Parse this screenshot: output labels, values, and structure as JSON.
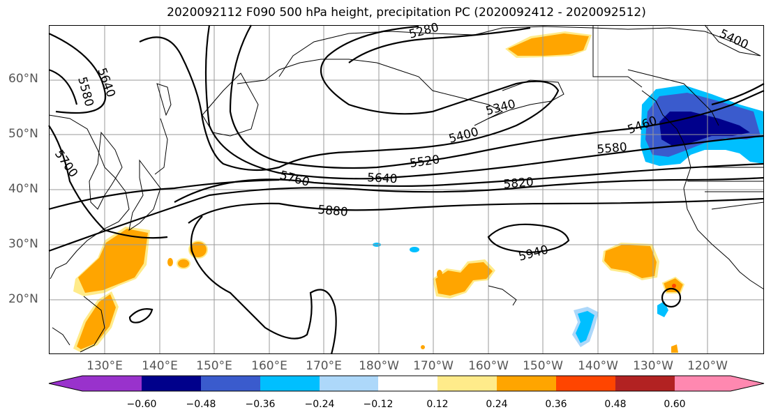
{
  "title": "2020092112 F090 500 hPa height, precipitation PC (2020092412 - 2020092512)",
  "latitude_labels": [
    "60°N",
    "50°N",
    "40°N",
    "30°N",
    "20°N"
  ],
  "longitude_labels": [
    "130°E",
    "140°E",
    "150°E",
    "160°E",
    "170°E",
    "180°W",
    "170°W",
    "160°W",
    "150°W",
    "140°W",
    "130°W",
    "120°W"
  ],
  "contour_labels": [
    "5280",
    "5400",
    "5640",
    "5580",
    "5340",
    "5400",
    "5460",
    "5580",
    "5520",
    "5640",
    "5700",
    "5760",
    "5820",
    "5880",
    "5940"
  ],
  "colorbar": {
    "ticks": [
      "−0.60",
      "−0.48",
      "−0.36",
      "−0.24",
      "−0.12",
      "0.12",
      "0.24",
      "0.36",
      "0.48",
      "0.60"
    ],
    "colors": [
      "#9932cc",
      "#00008b",
      "#3a5bcd",
      "#00bfff",
      "#add8fa",
      "#ffffff",
      "#ffeb8a",
      "#ffa500",
      "#ff4500",
      "#b22222",
      "#ff88b0"
    ]
  },
  "colors": {
    "contour": "#000000",
    "grid": "#9a9a9a",
    "coast": "#000000",
    "label_gray": "#555555"
  }
}
